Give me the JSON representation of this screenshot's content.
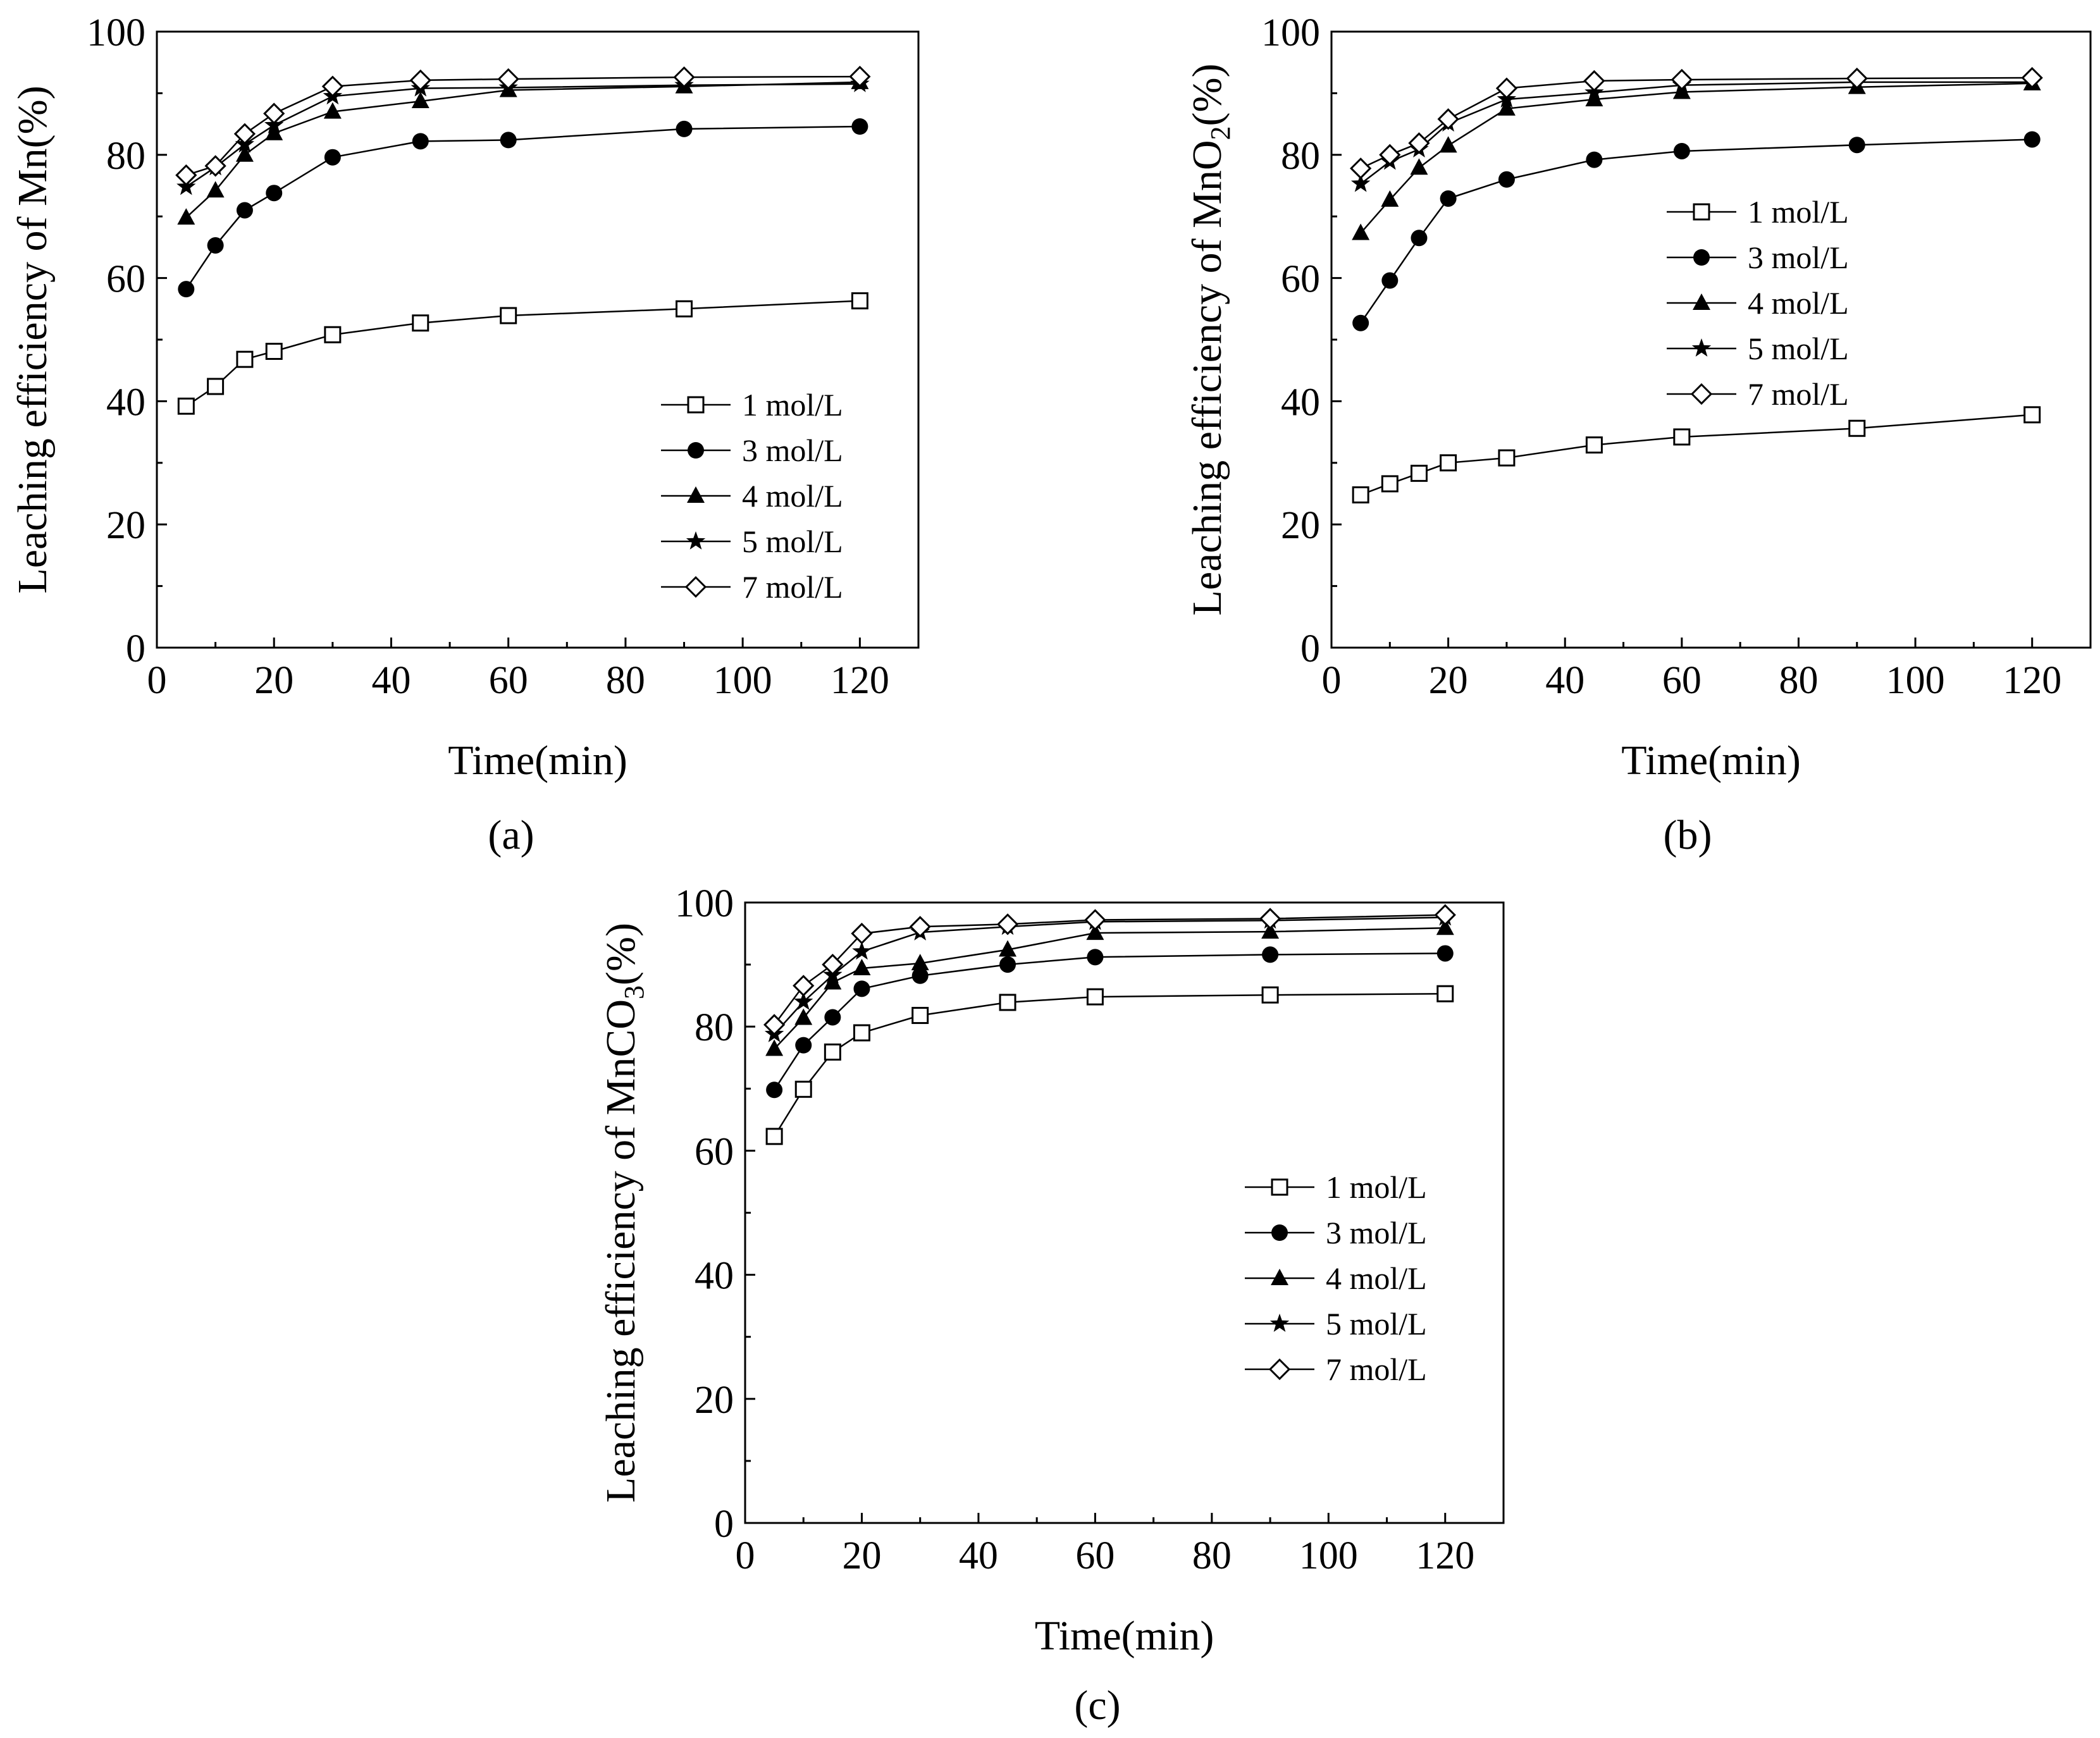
{
  "figure": {
    "panel_labels": [
      "(a)",
      "(b)",
      "(c)"
    ]
  },
  "chart_data": [
    {
      "type": "line",
      "panel": "a",
      "title": "",
      "xlabel": "Time(min)",
      "ylabel_prefix": "Leaching efficiency of Mn",
      "ylabel_sub": "",
      "ylabel_suffix": "(%)",
      "xlim": [
        0,
        130
      ],
      "ylim": [
        0,
        100
      ],
      "xticks": [
        0,
        20,
        40,
        60,
        80,
        100,
        120
      ],
      "yticks": [
        0,
        20,
        40,
        60,
        80,
        100
      ],
      "legend_position": "bottom-right",
      "x": [
        5,
        10,
        15,
        20,
        30,
        45,
        60,
        90,
        120
      ],
      "series": [
        {
          "name": "1 mol/L",
          "marker": "open-square",
          "values": [
            39.2,
            42.4,
            46.8,
            48.1,
            50.8,
            52.7,
            53.9,
            55.0,
            56.3
          ]
        },
        {
          "name": "3 mol/L",
          "marker": "filled-circle",
          "values": [
            58.2,
            65.3,
            71.0,
            73.8,
            79.6,
            82.2,
            82.4,
            84.2,
            84.6
          ]
        },
        {
          "name": "4 mol/L",
          "marker": "filled-triangle",
          "values": [
            69.8,
            74.2,
            80.0,
            83.5,
            87.0,
            88.7,
            90.5,
            91.1,
            91.8
          ]
        },
        {
          "name": "5 mol/L",
          "marker": "filled-star",
          "values": [
            74.8,
            78.0,
            81.7,
            84.8,
            89.5,
            90.8,
            90.9,
            91.3,
            91.5
          ]
        },
        {
          "name": "7 mol/L",
          "marker": "open-diamond",
          "values": [
            76.7,
            78.2,
            83.4,
            86.7,
            91.1,
            92.1,
            92.3,
            92.6,
            92.7
          ]
        }
      ]
    },
    {
      "type": "line",
      "panel": "b",
      "title": "",
      "xlabel": "Time(min)",
      "ylabel_prefix": "Leaching efficiency of MnO",
      "ylabel_sub": "2",
      "ylabel_suffix": "(%)",
      "xlim": [
        0,
        130
      ],
      "ylim": [
        0,
        100
      ],
      "xticks": [
        0,
        20,
        40,
        60,
        80,
        100,
        120
      ],
      "yticks": [
        0,
        20,
        40,
        60,
        80,
        100
      ],
      "legend_position": "center-right",
      "x": [
        5,
        10,
        15,
        20,
        30,
        45,
        60,
        90,
        120
      ],
      "series": [
        {
          "name": "1 mol/L",
          "marker": "open-square",
          "values": [
            24.8,
            26.6,
            28.3,
            30.0,
            30.8,
            32.9,
            34.2,
            35.6,
            37.8
          ]
        },
        {
          "name": "3 mol/L",
          "marker": "filled-circle",
          "values": [
            52.7,
            59.6,
            66.5,
            72.9,
            76.0,
            79.2,
            80.6,
            81.6,
            82.5
          ]
        },
        {
          "name": "4 mol/L",
          "marker": "filled-triangle",
          "values": [
            67.3,
            72.7,
            77.9,
            81.5,
            87.5,
            89.0,
            90.2,
            91.0,
            91.6
          ]
        },
        {
          "name": "5 mol/L",
          "marker": "filled-star",
          "values": [
            75.3,
            78.9,
            80.9,
            85.1,
            89.0,
            90.1,
            91.3,
            91.8,
            91.8
          ]
        },
        {
          "name": "7 mol/L",
          "marker": "open-diamond",
          "values": [
            77.8,
            80.0,
            81.9,
            85.8,
            90.8,
            92.0,
            92.2,
            92.4,
            92.5
          ]
        }
      ]
    },
    {
      "type": "line",
      "panel": "c",
      "title": "",
      "xlabel": "Time(min)",
      "ylabel_prefix": "Leaching efficiency of MnCO",
      "ylabel_sub": "3",
      "ylabel_suffix": "(%)",
      "xlim": [
        0,
        130
      ],
      "ylim": [
        0,
        100
      ],
      "xticks": [
        0,
        20,
        40,
        60,
        80,
        100,
        120
      ],
      "yticks": [
        0,
        20,
        40,
        60,
        80,
        100
      ],
      "legend_position": "center-right",
      "x": [
        5,
        10,
        15,
        20,
        30,
        45,
        60,
        90,
        120
      ],
      "series": [
        {
          "name": "1 mol/L",
          "marker": "open-square",
          "values": [
            62.3,
            69.9,
            75.9,
            79.0,
            81.8,
            83.9,
            84.8,
            85.1,
            85.3
          ]
        },
        {
          "name": "3 mol/L",
          "marker": "filled-circle",
          "values": [
            69.8,
            77.0,
            81.5,
            86.1,
            88.2,
            90.0,
            91.2,
            91.6,
            91.8
          ]
        },
        {
          "name": "4 mol/L",
          "marker": "filled-triangle",
          "values": [
            76.4,
            81.4,
            87.1,
            89.4,
            90.2,
            92.4,
            95.1,
            95.3,
            95.9
          ]
        },
        {
          "name": "5 mol/L",
          "marker": "filled-star",
          "values": [
            78.8,
            84.0,
            88.3,
            92.1,
            95.2,
            96.1,
            96.9,
            97.1,
            97.6
          ]
        },
        {
          "name": "7 mol/L",
          "marker": "open-diamond",
          "values": [
            80.3,
            86.6,
            90.0,
            95.0,
            96.1,
            96.5,
            97.2,
            97.4,
            98.0
          ]
        }
      ]
    }
  ]
}
